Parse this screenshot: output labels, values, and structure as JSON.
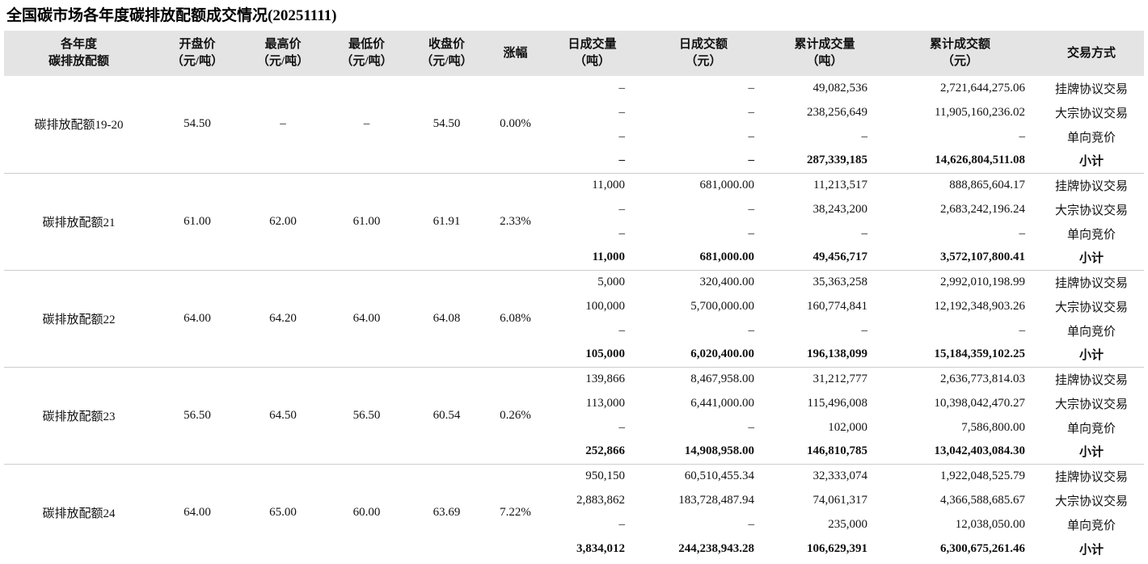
{
  "title": "全国碳市场各年度碳排放配额成交情况(20251111)",
  "colors": {
    "header_bg": "#e4e4e4",
    "separator": "#cccccc",
    "text": "#111111"
  },
  "chart_data": {
    "type": "table",
    "title": "全国碳市场各年度碳排放配额成交情况(20251111)",
    "columns": [
      {
        "line1": "各年度",
        "line2": "碳排放配额"
      },
      {
        "line1": "开盘价",
        "line2": "（元/吨）"
      },
      {
        "line1": "最高价",
        "line2": "（元/吨）"
      },
      {
        "line1": "最低价",
        "line2": "（元/吨）"
      },
      {
        "line1": "收盘价",
        "line2": "（元/吨）"
      },
      {
        "line1": "涨幅",
        "line2": ""
      },
      {
        "line1": "日成交量",
        "line2": "（吨）"
      },
      {
        "line1": "日成交额",
        "line2": "（元）"
      },
      {
        "line1": "累计成交量",
        "line2": "（吨）"
      },
      {
        "line1": "累计成交额",
        "line2": "（元）"
      },
      {
        "line1": "交易方式",
        "line2": ""
      }
    ],
    "groups": [
      {
        "name": "碳排放配额19-20",
        "open": "54.50",
        "high": "–",
        "low": "–",
        "close": "54.50",
        "change": "0.00%",
        "rows": [
          {
            "daily_volume": "–",
            "daily_amount": "–",
            "cum_volume": "49,082,536",
            "cum_amount": "2,721,644,275.06",
            "method": "挂牌协议交易",
            "subtotal": false
          },
          {
            "daily_volume": "–",
            "daily_amount": "–",
            "cum_volume": "238,256,649",
            "cum_amount": "11,905,160,236.02",
            "method": "大宗协议交易",
            "subtotal": false
          },
          {
            "daily_volume": "–",
            "daily_amount": "–",
            "cum_volume": "–",
            "cum_amount": "–",
            "method": "单向竞价",
            "subtotal": false
          },
          {
            "daily_volume": "–",
            "daily_amount": "–",
            "cum_volume": "287,339,185",
            "cum_amount": "14,626,804,511.08",
            "method": "小计",
            "subtotal": true
          }
        ]
      },
      {
        "name": "碳排放配额21",
        "open": "61.00",
        "high": "62.00",
        "low": "61.00",
        "close": "61.91",
        "change": "2.33%",
        "rows": [
          {
            "daily_volume": "11,000",
            "daily_amount": "681,000.00",
            "cum_volume": "11,213,517",
            "cum_amount": "888,865,604.17",
            "method": "挂牌协议交易",
            "subtotal": false
          },
          {
            "daily_volume": "–",
            "daily_amount": "–",
            "cum_volume": "38,243,200",
            "cum_amount": "2,683,242,196.24",
            "method": "大宗协议交易",
            "subtotal": false
          },
          {
            "daily_volume": "–",
            "daily_amount": "–",
            "cum_volume": "–",
            "cum_amount": "–",
            "method": "单向竞价",
            "subtotal": false
          },
          {
            "daily_volume": "11,000",
            "daily_amount": "681,000.00",
            "cum_volume": "49,456,717",
            "cum_amount": "3,572,107,800.41",
            "method": "小计",
            "subtotal": true
          }
        ]
      },
      {
        "name": "碳排放配额22",
        "open": "64.00",
        "high": "64.20",
        "low": "64.00",
        "close": "64.08",
        "change": "6.08%",
        "rows": [
          {
            "daily_volume": "5,000",
            "daily_amount": "320,400.00",
            "cum_volume": "35,363,258",
            "cum_amount": "2,992,010,198.99",
            "method": "挂牌协议交易",
            "subtotal": false
          },
          {
            "daily_volume": "100,000",
            "daily_amount": "5,700,000.00",
            "cum_volume": "160,774,841",
            "cum_amount": "12,192,348,903.26",
            "method": "大宗协议交易",
            "subtotal": false
          },
          {
            "daily_volume": "–",
            "daily_amount": "–",
            "cum_volume": "–",
            "cum_amount": "–",
            "method": "单向竞价",
            "subtotal": false
          },
          {
            "daily_volume": "105,000",
            "daily_amount": "6,020,400.00",
            "cum_volume": "196,138,099",
            "cum_amount": "15,184,359,102.25",
            "method": "小计",
            "subtotal": true
          }
        ]
      },
      {
        "name": "碳排放配额23",
        "open": "56.50",
        "high": "64.50",
        "low": "56.50",
        "close": "60.54",
        "change": "0.26%",
        "rows": [
          {
            "daily_volume": "139,866",
            "daily_amount": "8,467,958.00",
            "cum_volume": "31,212,777",
            "cum_amount": "2,636,773,814.03",
            "method": "挂牌协议交易",
            "subtotal": false
          },
          {
            "daily_volume": "113,000",
            "daily_amount": "6,441,000.00",
            "cum_volume": "115,496,008",
            "cum_amount": "10,398,042,470.27",
            "method": "大宗协议交易",
            "subtotal": false
          },
          {
            "daily_volume": "–",
            "daily_amount": "–",
            "cum_volume": "102,000",
            "cum_amount": "7,586,800.00",
            "method": "单向竞价",
            "subtotal": false
          },
          {
            "daily_volume": "252,866",
            "daily_amount": "14,908,958.00",
            "cum_volume": "146,810,785",
            "cum_amount": "13,042,403,084.30",
            "method": "小计",
            "subtotal": true
          }
        ]
      },
      {
        "name": "碳排放配额24",
        "open": "64.00",
        "high": "65.00",
        "low": "60.00",
        "close": "63.69",
        "change": "7.22%",
        "rows": [
          {
            "daily_volume": "950,150",
            "daily_amount": "60,510,455.34",
            "cum_volume": "32,333,074",
            "cum_amount": "1,922,048,525.79",
            "method": "挂牌协议交易",
            "subtotal": false
          },
          {
            "daily_volume": "2,883,862",
            "daily_amount": "183,728,487.94",
            "cum_volume": "74,061,317",
            "cum_amount": "4,366,588,685.67",
            "method": "大宗协议交易",
            "subtotal": false
          },
          {
            "daily_volume": "–",
            "daily_amount": "–",
            "cum_volume": "235,000",
            "cum_amount": "12,038,050.00",
            "method": "单向竞价",
            "subtotal": false
          },
          {
            "daily_volume": "3,834,012",
            "daily_amount": "244,238,943.28",
            "cum_volume": "106,629,391",
            "cum_amount": "6,300,675,261.46",
            "method": "小计",
            "subtotal": true
          }
        ]
      }
    ]
  }
}
